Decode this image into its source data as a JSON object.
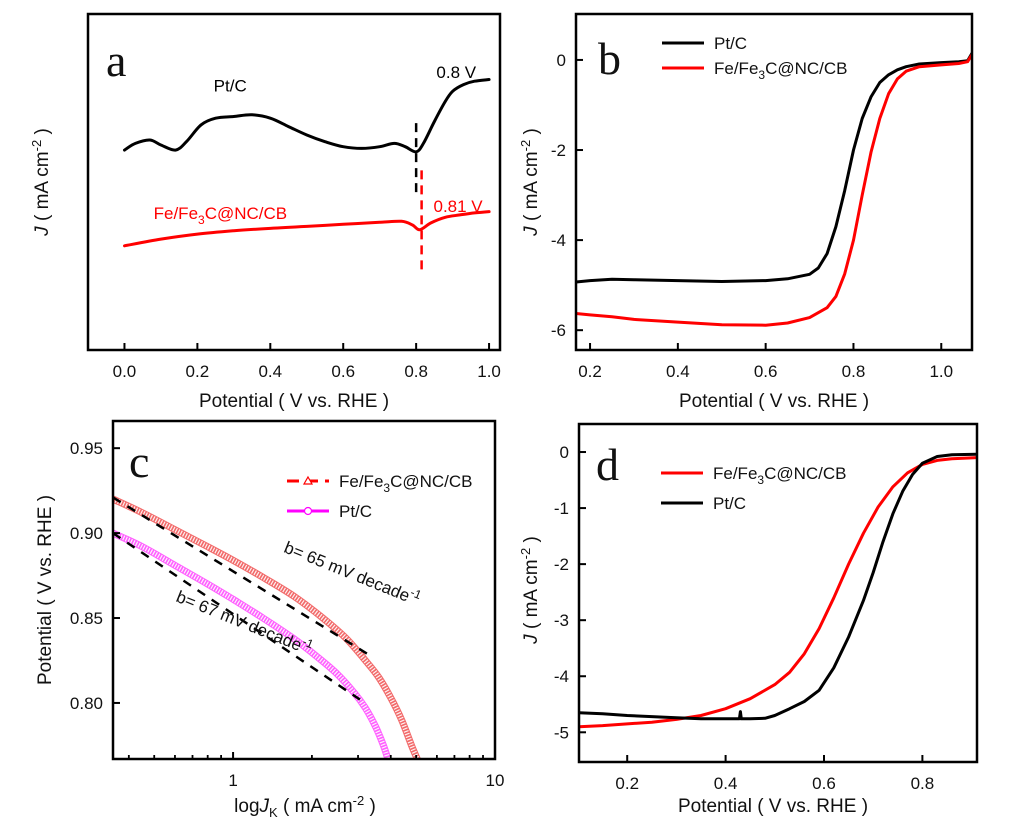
{
  "chart_data": [
    {
      "panel": "a",
      "type": "line",
      "panel_label": "a",
      "xlabel": "Potential ( V vs. RHE )",
      "ylabel": "J ( mA cm-2 )",
      "ylabel_parts": {
        "italic": "J",
        "rest": " ( mA cm",
        "sup": "-2",
        "end": " )"
      },
      "xlim": [
        -0.1,
        1.03
      ],
      "ylim": [
        0,
        1
      ],
      "y_ticks_shown": false,
      "xticks": [
        0.0,
        0.2,
        0.4,
        0.6,
        0.8,
        1.0
      ],
      "xtick_labels": [
        "0.0",
        "0.2",
        "0.4",
        "0.6",
        "0.8",
        "1.0"
      ],
      "series": [
        {
          "name": "Pt/C",
          "color": "#000000",
          "x": [
            0.0,
            0.03,
            0.07,
            0.1,
            0.14,
            0.17,
            0.21,
            0.25,
            0.3,
            0.35,
            0.4,
            0.45,
            0.5,
            0.55,
            0.6,
            0.65,
            0.7,
            0.74,
            0.77,
            0.8,
            0.82,
            0.85,
            0.88,
            0.9,
            0.93,
            0.96,
            1.0
          ],
          "y": [
            0.595,
            0.615,
            0.625,
            0.61,
            0.595,
            0.62,
            0.67,
            0.69,
            0.695,
            0.7,
            0.69,
            0.665,
            0.64,
            0.62,
            0.605,
            0.6,
            0.605,
            0.615,
            0.605,
            0.59,
            0.615,
            0.68,
            0.74,
            0.77,
            0.79,
            0.8,
            0.805
          ]
        },
        {
          "name": "Fe/Fe3C@NC/CB",
          "color": "#ff0000",
          "x": [
            0.0,
            0.1,
            0.2,
            0.3,
            0.4,
            0.5,
            0.6,
            0.7,
            0.76,
            0.79,
            0.81,
            0.84,
            0.88,
            0.92,
            0.96,
            1.0
          ],
          "y": [
            0.31,
            0.33,
            0.345,
            0.355,
            0.362,
            0.368,
            0.374,
            0.38,
            0.383,
            0.372,
            0.358,
            0.378,
            0.395,
            0.402,
            0.408,
            0.412
          ]
        }
      ],
      "annotations": [
        {
          "text": "Pt/C",
          "x": 0.29,
          "y": 0.77,
          "color": "#000000"
        },
        {
          "text": "0.8 V",
          "x": 0.91,
          "y": 0.81,
          "color": "#000000"
        },
        {
          "text_parts": [
            "Fe/Fe",
            "3",
            "C@NC/CB"
          ],
          "x": 0.08,
          "y": 0.39,
          "color": "#ff0000"
        },
        {
          "text": "0.81 V",
          "x": 0.915,
          "y": 0.41,
          "color": "#ff0000"
        }
      ],
      "vlines": [
        {
          "x": 0.8,
          "y0": 0.47,
          "y1": 0.69,
          "color": "#000000",
          "dashed": true
        },
        {
          "x": 0.815,
          "y0": 0.24,
          "y1": 0.54,
          "color": "#ff0000",
          "dashed": true
        }
      ]
    },
    {
      "panel": "b",
      "type": "line",
      "panel_label": "b",
      "xlabel": "Potential ( V vs. RHE )",
      "ylabel_parts": {
        "italic": "J",
        "rest": " ( mA cm",
        "sup": "-2",
        "end": " )"
      },
      "xlim": [
        0.168,
        1.07
      ],
      "ylim": [
        -6.44,
        1.02
      ],
      "xticks": [
        0.2,
        0.4,
        0.6,
        0.8,
        1.0
      ],
      "xtick_labels": [
        "0.2",
        "0.4",
        "0.6",
        "0.8",
        "1.0"
      ],
      "yticks": [
        0,
        -2,
        -4,
        -6
      ],
      "ytick_labels": [
        "0",
        "-2",
        "-4",
        "-6"
      ],
      "legend": {
        "position": "top-left",
        "entries": [
          {
            "label_parts": [
              "Pt/C"
            ],
            "color": "#000000"
          },
          {
            "label_parts": [
              "Fe/Fe",
              "3",
              "C@NC/CB"
            ],
            "color": "#ff0000"
          }
        ]
      },
      "series": [
        {
          "name": "Pt/C",
          "color": "#000000",
          "x": [
            0.168,
            0.2,
            0.25,
            0.3,
            0.4,
            0.5,
            0.6,
            0.65,
            0.7,
            0.72,
            0.74,
            0.76,
            0.78,
            0.8,
            0.82,
            0.84,
            0.86,
            0.88,
            0.9,
            0.92,
            0.95,
            1.0,
            1.04,
            1.06,
            1.07
          ],
          "y": [
            -4.93,
            -4.9,
            -4.87,
            -4.88,
            -4.9,
            -4.92,
            -4.9,
            -4.86,
            -4.76,
            -4.62,
            -4.3,
            -3.7,
            -2.9,
            -2.0,
            -1.3,
            -0.82,
            -0.5,
            -0.33,
            -0.22,
            -0.15,
            -0.09,
            -0.06,
            -0.04,
            -0.02,
            0.15
          ]
        },
        {
          "name": "Fe/Fe3C@NC/CB",
          "color": "#ff0000",
          "x": [
            0.168,
            0.2,
            0.25,
            0.3,
            0.4,
            0.5,
            0.6,
            0.65,
            0.7,
            0.74,
            0.76,
            0.78,
            0.8,
            0.82,
            0.84,
            0.86,
            0.88,
            0.9,
            0.92,
            0.95,
            1.0,
            1.04,
            1.06,
            1.07
          ],
          "y": [
            -5.63,
            -5.66,
            -5.7,
            -5.76,
            -5.82,
            -5.88,
            -5.89,
            -5.84,
            -5.72,
            -5.5,
            -5.25,
            -4.75,
            -4.0,
            -3.0,
            -2.05,
            -1.3,
            -0.75,
            -0.42,
            -0.25,
            -0.15,
            -0.11,
            -0.08,
            -0.04,
            0.12
          ]
        }
      ]
    },
    {
      "panel": "c",
      "type": "line",
      "panel_label": "c",
      "xscale": "log",
      "xlabel_parts": {
        "pre": "log",
        "italic": "J",
        "sub": "K",
        "rest": " ( mA cm",
        "sup": "-2",
        "end": " )"
      },
      "ylabel": "Potential ( V vs. RHE )",
      "xlim": [
        0.348,
        10
      ],
      "ylim": [
        0.767,
        0.966
      ],
      "xticks": [
        1,
        10
      ],
      "xtick_labels": [
        "1",
        "10"
      ],
      "xminor_ticks": [
        0.4,
        0.5,
        0.6,
        0.7,
        0.8,
        0.9,
        2,
        3,
        4,
        5,
        6,
        7,
        8,
        9
      ],
      "yticks": [
        0.95,
        0.9,
        0.85,
        0.8
      ],
      "ytick_labels": [
        "0.95",
        "0.90",
        "0.85",
        "0.80"
      ],
      "legend": {
        "position": "top-right",
        "entries": [
          {
            "label_parts": [
              "Fe/Fe",
              "3",
              "C@NC/CB"
            ],
            "color": "#ff0000",
            "marker": "triangle",
            "linestyle": "dashed"
          },
          {
            "label_parts": [
              "Pt/C"
            ],
            "color": "#ff00ff",
            "marker": "circle",
            "linestyle": "solid"
          }
        ]
      },
      "series": [
        {
          "name": "Fe/Fe3C@NC/CB",
          "color": "#f05050",
          "marker": "triangle",
          "x": [
            0.348,
            0.45,
            0.6,
            0.8,
            1.0,
            1.3,
            1.7,
            2.2,
            2.7,
            3.2,
            3.6,
            4.0,
            4.4,
            4.8,
            5.05
          ],
          "y": [
            0.92,
            0.912,
            0.902,
            0.892,
            0.884,
            0.874,
            0.863,
            0.85,
            0.838,
            0.825,
            0.815,
            0.803,
            0.79,
            0.775,
            0.767
          ]
        },
        {
          "name": "Pt/C",
          "color": "#ff44ff",
          "marker": "circle",
          "x": [
            0.348,
            0.45,
            0.6,
            0.8,
            1.0,
            1.3,
            1.7,
            2.1,
            2.5,
            2.9,
            3.2,
            3.5,
            3.75,
            3.9
          ],
          "y": [
            0.9,
            0.892,
            0.881,
            0.87,
            0.861,
            0.85,
            0.838,
            0.827,
            0.817,
            0.806,
            0.797,
            0.786,
            0.775,
            0.767
          ]
        }
      ],
      "fit_lines": [
        {
          "label": "b= 65 mV decade-1",
          "label_parts": [
            "b= 65 mV decade",
            "-1"
          ],
          "slope_mV_per_decade": 65,
          "x": [
            0.348,
            3.25
          ],
          "y": [
            0.921,
            0.829
          ],
          "color": "#000000",
          "dashed": true
        },
        {
          "label": "b= 67 mV decade-1",
          "label_parts": [
            "b= 67 mV decade",
            "-1"
          ],
          "slope_mV_per_decade": 67,
          "x": [
            0.348,
            3.05
          ],
          "y": [
            0.9,
            0.802
          ],
          "color": "#000000",
          "dashed": true
        }
      ]
    },
    {
      "panel": "d",
      "type": "line",
      "panel_label": "d",
      "xlabel": "Potential ( V vs. RHE )",
      "ylabel_parts": {
        "italic": "J",
        "rest": " ( mA cm",
        "sup": "-2",
        "end": " )"
      },
      "xlim": [
        0.102,
        0.911
      ],
      "ylim": [
        -5.53,
        0.5
      ],
      "xticks": [
        0.2,
        0.4,
        0.6,
        0.8
      ],
      "xtick_labels": [
        "0.2",
        "0.4",
        "0.6",
        "0.8"
      ],
      "yticks": [
        0,
        -1,
        -2,
        -3,
        -4,
        -5
      ],
      "ytick_labels": [
        "0",
        "-1",
        "-2",
        "-3",
        "-4",
        "-5"
      ],
      "legend": {
        "position": "top-left",
        "entries": [
          {
            "label_parts": [
              "Fe/Fe",
              "3",
              "C@NC/CB"
            ],
            "color": "#ff0000"
          },
          {
            "label_parts": [
              "Pt/C"
            ],
            "color": "#000000"
          }
        ]
      },
      "series": [
        {
          "name": "Fe/Fe3C@NC/CB",
          "color": "#ff0000",
          "x": [
            0.102,
            0.15,
            0.2,
            0.25,
            0.3,
            0.35,
            0.4,
            0.45,
            0.5,
            0.53,
            0.56,
            0.59,
            0.62,
            0.65,
            0.68,
            0.71,
            0.74,
            0.77,
            0.8,
            0.83,
            0.86,
            0.911
          ],
          "y": [
            -4.9,
            -4.88,
            -4.85,
            -4.82,
            -4.77,
            -4.7,
            -4.58,
            -4.4,
            -4.15,
            -3.93,
            -3.6,
            -3.15,
            -2.6,
            -2.0,
            -1.45,
            -0.98,
            -0.62,
            -0.37,
            -0.22,
            -0.15,
            -0.12,
            -0.1
          ]
        },
        {
          "name": "Pt/C",
          "color": "#000000",
          "x": [
            0.102,
            0.15,
            0.2,
            0.25,
            0.3,
            0.35,
            0.4,
            0.428,
            0.43,
            0.432,
            0.45,
            0.48,
            0.5,
            0.53,
            0.56,
            0.59,
            0.62,
            0.65,
            0.68,
            0.7,
            0.72,
            0.74,
            0.76,
            0.78,
            0.8,
            0.83,
            0.86,
            0.911
          ],
          "y": [
            -4.65,
            -4.67,
            -4.7,
            -4.72,
            -4.74,
            -4.76,
            -4.76,
            -4.76,
            -4.63,
            -4.76,
            -4.76,
            -4.75,
            -4.7,
            -4.58,
            -4.45,
            -4.25,
            -3.85,
            -3.3,
            -2.65,
            -2.15,
            -1.6,
            -1.1,
            -0.7,
            -0.4,
            -0.2,
            -0.08,
            -0.05,
            -0.04
          ]
        }
      ]
    }
  ]
}
